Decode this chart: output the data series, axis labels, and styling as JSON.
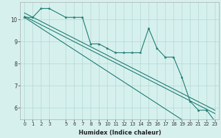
{
  "xlabel": "Humidex (Indice chaleur)",
  "bg_color": "#d6f0ee",
  "grid_color": "#b0d8d4",
  "line_color": "#1a7a6e",
  "x_data": [
    0,
    1,
    2,
    3,
    5,
    6,
    7,
    8,
    9,
    10,
    11,
    12,
    13,
    14,
    15,
    16,
    17,
    18,
    19,
    20,
    21,
    22,
    23
  ],
  "y_main": [
    10.1,
    10.1,
    10.5,
    10.5,
    10.1,
    10.1,
    10.1,
    8.9,
    8.9,
    8.7,
    8.5,
    8.5,
    8.5,
    8.5,
    9.6,
    8.7,
    8.3,
    8.3,
    7.4,
    6.3,
    5.9,
    5.9,
    5.4
  ],
  "trend1_start": 10.15,
  "trend1_end": 5.75,
  "trend2_start": 10.3,
  "trend2_end": 5.9,
  "trend3_start": 10.1,
  "trend3_end": 4.5,
  "xlim": [
    -0.5,
    23.5
  ],
  "ylim": [
    5.5,
    10.8
  ],
  "yticks": [
    6,
    7,
    8,
    9,
    10
  ],
  "xticks": [
    0,
    1,
    2,
    3,
    5,
    6,
    7,
    8,
    9,
    10,
    11,
    12,
    13,
    14,
    15,
    16,
    17,
    18,
    19,
    20,
    21,
    22,
    23
  ],
  "xlabel_fontsize": 6.0,
  "tick_fontsize": 5.0
}
